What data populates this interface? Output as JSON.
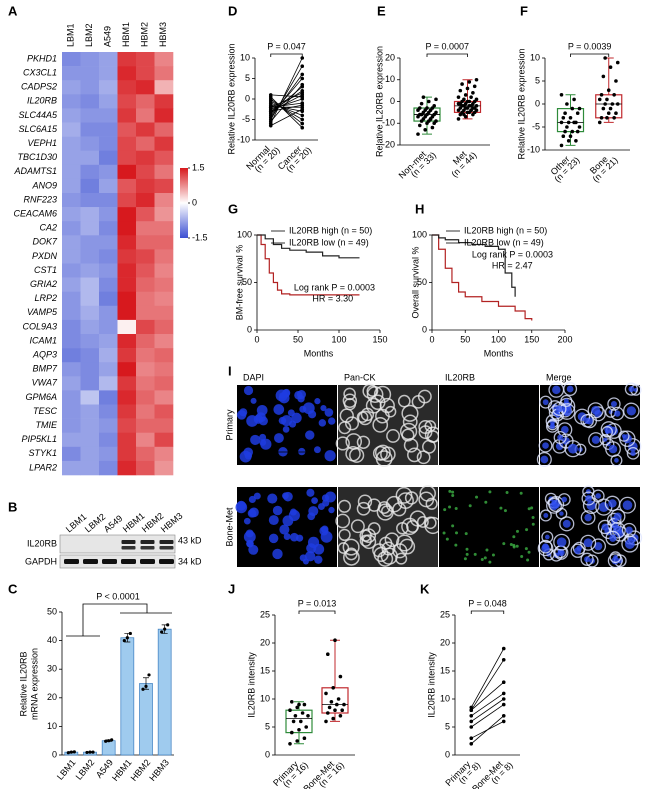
{
  "chart_data": [
    {
      "type": "heatmap",
      "panel": "A",
      "columns": [
        "LBM1",
        "LBM2",
        "A549",
        "HBM1",
        "HBM2",
        "HBM3"
      ],
      "column_colors": [
        "#2b4a8b",
        "#2b4a8b",
        "#2b4a8b",
        "#c0282d",
        "#c0282d",
        "#c0282d"
      ],
      "rows": [
        "PKHD1",
        "CX3CL1",
        "CADPS2",
        "IL20RB",
        "SLC44A5",
        "SLC6A15",
        "VEPH1",
        "TBC1D30",
        "ADAMTS1",
        "ANO9",
        "RNF223",
        "CEACAM6",
        "CA2",
        "DOK7",
        "PXDN",
        "CST1",
        "GRIA2",
        "LRP2",
        "VAMP5",
        "COL9A3",
        "ICAM1",
        "AQP3",
        "BMP7",
        "VWA7",
        "GPM6A",
        "TESC",
        "TMIE",
        "PIP5KL1",
        "STYK1",
        "LPAR2"
      ],
      "row_colors": [
        "#000",
        "#000",
        "#000",
        "#d0201f",
        "#000",
        "#000",
        "#000",
        "#000",
        "#000",
        "#000",
        "#000",
        "#000",
        "#000",
        "#000",
        "#000",
        "#000",
        "#000",
        "#000",
        "#000",
        "#000",
        "#000",
        "#000",
        "#000",
        "#000",
        "#000",
        "#000",
        "#000",
        "#000",
        "#000",
        "#000"
      ],
      "values": [
        [
          -1.0,
          -0.9,
          -0.8,
          1.3,
          1.2,
          0.8
        ],
        [
          -0.9,
          -0.9,
          -0.8,
          1.4,
          1.2,
          0.9
        ],
        [
          -0.8,
          -0.9,
          -0.7,
          1.3,
          1.4,
          0.5
        ],
        [
          -0.9,
          -1.0,
          -0.8,
          1.2,
          1.0,
          1.3
        ],
        [
          -0.8,
          -0.9,
          -0.9,
          1.3,
          0.9,
          1.4
        ],
        [
          -0.7,
          -1.0,
          -1.0,
          1.1,
          1.3,
          1.0
        ],
        [
          -0.8,
          -0.9,
          -1.0,
          1.2,
          1.0,
          1.3
        ],
        [
          -0.8,
          -0.8,
          -1.1,
          1.2,
          1.3,
          1.1
        ],
        [
          -0.8,
          -1.0,
          -0.9,
          1.5,
          1.2,
          0.9
        ],
        [
          -0.8,
          -1.1,
          -0.8,
          1.1,
          1.3,
          1.2
        ],
        [
          -0.9,
          -1.0,
          -1.0,
          1.2,
          1.4,
          0.8
        ],
        [
          -0.8,
          -0.7,
          -0.9,
          1.5,
          1.1,
          0.7
        ],
        [
          -0.9,
          -0.7,
          -1.0,
          1.5,
          0.9,
          0.9
        ],
        [
          -0.8,
          -0.9,
          -0.9,
          1.4,
          1.0,
          1.0
        ],
        [
          -0.8,
          -0.9,
          -1.0,
          1.3,
          1.2,
          0.9
        ],
        [
          -0.9,
          -0.8,
          -0.9,
          1.4,
          1.1,
          0.8
        ],
        [
          -0.8,
          -0.6,
          -1.0,
          1.4,
          1.0,
          0.9
        ],
        [
          -0.9,
          -0.6,
          -1.1,
          1.5,
          0.9,
          0.8
        ],
        [
          -0.9,
          -0.7,
          -0.9,
          1.5,
          0.9,
          0.9
        ],
        [
          -1.0,
          -0.8,
          -0.9,
          0.1,
          1.2,
          1.0
        ],
        [
          -1.0,
          -0.9,
          -0.8,
          1.4,
          1.0,
          0.8
        ],
        [
          -1.1,
          -1.0,
          -0.7,
          1.3,
          0.9,
          1.0
        ],
        [
          -0.9,
          -1.0,
          -0.8,
          1.5,
          0.8,
          0.9
        ],
        [
          -0.8,
          -1.0,
          -0.6,
          1.3,
          0.9,
          1.0
        ],
        [
          -0.9,
          -0.5,
          -1.1,
          1.4,
          1.0,
          0.8
        ],
        [
          -0.9,
          -0.8,
          -1.0,
          1.3,
          0.9,
          1.1
        ],
        [
          -0.9,
          -0.8,
          -0.9,
          1.2,
          1.0,
          1.0
        ],
        [
          -0.8,
          -0.8,
          -1.0,
          1.3,
          0.8,
          1.2
        ],
        [
          -1.0,
          -0.8,
          -0.9,
          1.3,
          1.0,
          0.8
        ],
        [
          -0.8,
          -0.8,
          -1.0,
          1.4,
          1.1,
          0.7
        ]
      ],
      "zlim": [
        -1.5,
        1.5
      ],
      "zticks": [
        1.5,
        0,
        -1.5
      ]
    },
    {
      "type": "blot",
      "panel": "B",
      "lanes": [
        "LBM1",
        "LBM2",
        "A549",
        "HBM1",
        "HBM2",
        "HBM3"
      ],
      "lane_colors": [
        "#2b4a8b",
        "#2b4a8b",
        "#2b4a8b",
        "#c0282d",
        "#c0282d",
        "#c0282d"
      ],
      "rows": [
        "IL20RB",
        "GAPDH"
      ],
      "sizes": [
        "43 kD",
        "34 kD"
      ]
    },
    {
      "type": "bar",
      "panel": "C",
      "ylabel": [
        "Relative IL20RB",
        "mRNA expression"
      ],
      "categories": [
        "LBM1",
        "LBM2",
        "A549",
        "HBM1",
        "HBM2",
        "HBM3"
      ],
      "category_colors": [
        "#2b4a8b",
        "#2b4a8b",
        "#2b4a8b",
        "#c0282d",
        "#c0282d",
        "#c0282d"
      ],
      "values": [
        1,
        1,
        5,
        41,
        25,
        44
      ],
      "errors": [
        0.2,
        0.1,
        0.3,
        1.5,
        2,
        1.5
      ],
      "points": [
        [
          0.8,
          1,
          1.1
        ],
        [
          0.9,
          1,
          1
        ],
        [
          4.8,
          5,
          5.3
        ],
        [
          40,
          41,
          42.5
        ],
        [
          23,
          24,
          28
        ],
        [
          43,
          44,
          45.5
        ]
      ],
      "color": "#9fcbee",
      "ylim": [
        0,
        50
      ],
      "yticks": [
        0,
        10,
        20,
        30,
        40,
        50
      ],
      "p_label": "P < 0.0001"
    },
    {
      "type": "paired",
      "panel": "D",
      "ylabel": "Relative IL20RB expression",
      "p_label": "P = 0.047",
      "ylim": [
        -10,
        10
      ],
      "yticks": [
        -10,
        -5,
        0,
        5,
        10
      ],
      "series": [
        {
          "name": "Normal",
          "n_label": "(n = 20)",
          "values": [
            -6,
            -5,
            -4.5,
            -4,
            -3.5,
            -3,
            -3,
            -2.5,
            -2,
            -2,
            -1.5,
            -1,
            -0.5,
            0,
            0.5,
            1,
            -6.5,
            -5.5,
            -3,
            -2
          ]
        },
        {
          "name": "Cancer",
          "n_label": "(n = 20)",
          "values": [
            10,
            8,
            6,
            5,
            3,
            2,
            1,
            0,
            -1,
            -2,
            -3,
            -4,
            -5,
            -6,
            -7,
            0.5,
            -2.5,
            3.5,
            -1.5,
            1.5
          ]
        }
      ]
    },
    {
      "type": "box",
      "panel": "E",
      "ylabel": "Relative IL20RB expression",
      "p_label": "P = 0.0007",
      "ylim": [
        -20,
        20
      ],
      "yticks": [
        -20,
        -10,
        0,
        10,
        20
      ],
      "series": [
        {
          "name": "Non-met",
          "n_label": "(n = 33)",
          "color": "#2e8b3a",
          "box": {
            "min": -15,
            "q1": -9,
            "median": -6,
            "q3": -3,
            "max": 2
          },
          "values": [
            -15,
            -13,
            -12,
            -11,
            -10,
            -10,
            -9,
            -9,
            -9,
            -8,
            -8,
            -7,
            -7,
            -7,
            -6,
            -6,
            -6,
            -6,
            -5,
            -5,
            -5,
            -4,
            -4,
            -4,
            -3,
            -3,
            -3,
            -2,
            -1,
            0,
            1,
            2,
            -8
          ]
        },
        {
          "name": "Met",
          "n_label": "(n = 44)",
          "color": "#c0282d",
          "box": {
            "min": -8,
            "q1": -5,
            "median": -2,
            "q3": 0,
            "max": 10
          },
          "values": [
            -8,
            -7,
            -6,
            -6,
            -5,
            -5,
            -5,
            -5,
            -4,
            -4,
            -4,
            -4,
            -3,
            -3,
            -3,
            -3,
            -3,
            -2,
            -2,
            -2,
            -2,
            -2,
            -1,
            -1,
            -1,
            -1,
            0,
            0,
            0,
            0,
            1,
            1,
            2,
            2,
            3,
            4,
            5,
            6,
            7,
            8,
            9,
            10,
            -6,
            -4
          ]
        }
      ]
    },
    {
      "type": "box",
      "panel": "F",
      "ylabel": "Relative IL20RB expression",
      "p_label": "P = 0.0039",
      "ylim": [
        -10,
        10
      ],
      "yticks": [
        -10,
        -5,
        0,
        5,
        10
      ],
      "series": [
        {
          "name": "Other",
          "n_label": "(n = 23)",
          "color": "#2e8b3a",
          "box": {
            "min": -9,
            "q1": -6,
            "median": -4,
            "q3": -1,
            "max": 2
          },
          "values": [
            -9,
            -8,
            -8,
            -7,
            -7,
            -6,
            -6,
            -6,
            -5,
            -5,
            -4,
            -4,
            -4,
            -4,
            -3,
            -3,
            -2,
            -2,
            -1,
            -1,
            0,
            1,
            2
          ]
        },
        {
          "name": "Bone",
          "n_label": "(n = 21)",
          "color": "#c0282d",
          "box": {
            "min": -4,
            "q1": -3,
            "median": 0,
            "q3": 2,
            "max": 10
          },
          "values": [
            -4,
            -3,
            -3,
            -3,
            -2,
            -2,
            -1,
            -1,
            0,
            0,
            0,
            1,
            1,
            2,
            2,
            3,
            5,
            6,
            8,
            9,
            10
          ]
        }
      ]
    },
    {
      "type": "survival",
      "panel": "G",
      "xlabel": "Months",
      "ylabel": "BM-free survival %",
      "xlim": [
        0,
        150
      ],
      "xticks": [
        0,
        50,
        100,
        150
      ],
      "ylim": [
        0,
        100
      ],
      "yticks": [
        0,
        50,
        100
      ],
      "annotations": [
        "Log rank P = 0.0003",
        "HR = 3.30"
      ],
      "series": [
        {
          "name": "IL20RB high (n = 50)",
          "color": "#b22222",
          "x": [
            0,
            5,
            10,
            15,
            20,
            25,
            30,
            40,
            60,
            125
          ],
          "values": [
            100,
            90,
            75,
            60,
            50,
            42,
            38,
            37,
            37,
            37
          ]
        },
        {
          "name": "IL20RB low (n = 49)",
          "color": "#222222",
          "x": [
            0,
            10,
            20,
            30,
            40,
            60,
            80,
            100,
            125
          ],
          "values": [
            100,
            96,
            90,
            86,
            84,
            82,
            78,
            76,
            76
          ]
        }
      ]
    },
    {
      "type": "survival",
      "panel": "H",
      "xlabel": "Months",
      "ylabel": "Overall survival %",
      "xlim": [
        0,
        200
      ],
      "xticks": [
        0,
        50,
        100,
        150,
        200
      ],
      "ylim": [
        0,
        100
      ],
      "yticks": [
        0,
        50,
        100
      ],
      "annotations": [
        "Log rank P = 0.0003",
        "HR = 2.47"
      ],
      "series": [
        {
          "name": "IL20RB high (n = 50)",
          "color": "#b22222",
          "x": [
            0,
            10,
            20,
            30,
            40,
            50,
            75,
            100,
            125,
            140,
            150
          ],
          "values": [
            100,
            85,
            65,
            50,
            40,
            35,
            30,
            25,
            20,
            12,
            10
          ]
        },
        {
          "name": "IL20RB low (n = 49)",
          "color": "#222222",
          "x": [
            0,
            10,
            20,
            40,
            60,
            80,
            100,
            110,
            120,
            125
          ],
          "values": [
            100,
            97,
            95,
            92,
            90,
            88,
            85,
            60,
            45,
            35
          ]
        }
      ]
    },
    {
      "type": "images",
      "panel": "I",
      "columns": [
        "DAPI",
        "Pan-CK",
        "IL20RB",
        "Merge"
      ],
      "rows": [
        "Primary",
        "Bone-Met"
      ]
    },
    {
      "type": "box",
      "panel": "J",
      "ylabel": "IL20RB intensity",
      "p_label": "P = 0.013",
      "ylim": [
        0,
        25
      ],
      "yticks": [
        0,
        5,
        10,
        15,
        20,
        25
      ],
      "series": [
        {
          "name": "Primary",
          "n_label": "(n = 16)",
          "color": "#2e8b3a",
          "box": {
            "min": 2,
            "q1": 4,
            "median": 6.5,
            "q3": 8,
            "max": 9.5
          },
          "values": [
            2,
            2.5,
            3,
            4,
            4.5,
            5,
            6,
            6,
            7,
            7,
            7.5,
            8,
            8.5,
            9,
            9.5,
            9
          ]
        },
        {
          "name": "Bone-Met",
          "n_label": "(n = 16)",
          "color": "#c0282d",
          "box": {
            "min": 6,
            "q1": 7.5,
            "median": 9,
            "q3": 12,
            "max": 20.5
          },
          "values": [
            6,
            6.5,
            7,
            7.5,
            8,
            8,
            8.5,
            9,
            9,
            9.5,
            10,
            11,
            12,
            14,
            18,
            20.5
          ]
        }
      ]
    },
    {
      "type": "paired",
      "panel": "K",
      "ylabel": "IL20RB intensity",
      "p_label": "P = 0.048",
      "ylim": [
        0,
        25
      ],
      "yticks": [
        0,
        5,
        10,
        15,
        20,
        25
      ],
      "series": [
        {
          "name": "Primary",
          "n_label": "(n = 8)",
          "values": [
            2,
            3,
            5,
            6,
            7,
            8,
            8,
            8.5
          ]
        },
        {
          "name": "Bone-Met",
          "n_label": "(n = 8)",
          "values": [
            7,
            6,
            9,
            10,
            11,
            13,
            17,
            19
          ]
        }
      ]
    }
  ]
}
